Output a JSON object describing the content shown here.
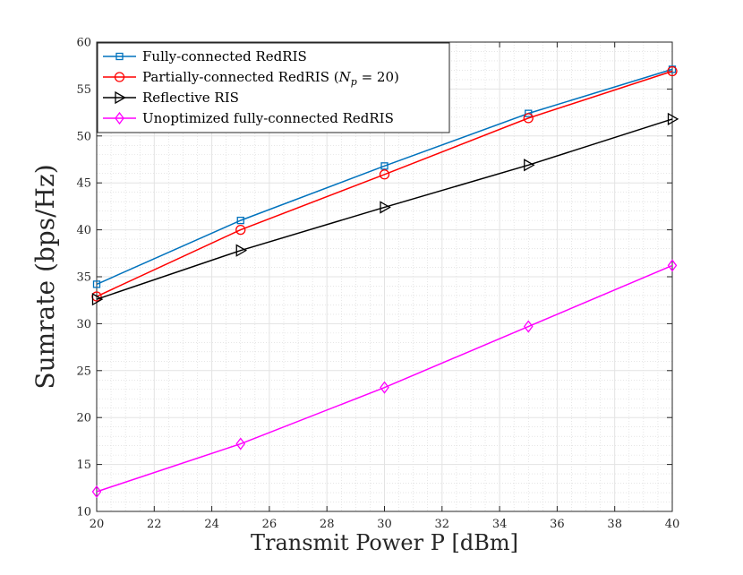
{
  "chart_data": {
    "type": "line",
    "title": "",
    "xlabel": "Transmit Power P [dBm]",
    "ylabel": "Sumrate (bps/Hz)",
    "xlim": [
      20,
      40
    ],
    "ylim": [
      10,
      60
    ],
    "xticks": [
      20,
      22,
      24,
      26,
      28,
      30,
      32,
      34,
      36,
      38,
      40
    ],
    "yticks": [
      10,
      15,
      20,
      25,
      30,
      35,
      40,
      45,
      50,
      55,
      60
    ],
    "grid": true,
    "minor_grid": true,
    "legend_position": "top-left",
    "x": [
      20,
      25,
      30,
      35,
      40
    ],
    "series": [
      {
        "name": "Fully-connected RedRIS",
        "color": "#0072BD",
        "marker": "square",
        "values": [
          34.2,
          41.0,
          46.8,
          52.4,
          57.1
        ]
      },
      {
        "name": "Partially-connected RedRIS (N_p = 20)",
        "color": "#FF0000",
        "marker": "circle",
        "values": [
          32.9,
          40.0,
          45.9,
          51.9,
          56.9
        ]
      },
      {
        "name": "Reflective RIS",
        "color": "#000000",
        "marker": "triangle-right",
        "values": [
          32.6,
          37.8,
          42.4,
          46.9,
          51.8
        ]
      },
      {
        "name": "Unoptimized fully-connected RedRIS",
        "color": "#FF00FF",
        "marker": "diamond",
        "values": [
          12.1,
          17.2,
          23.2,
          29.7,
          36.2
        ]
      }
    ]
  }
}
